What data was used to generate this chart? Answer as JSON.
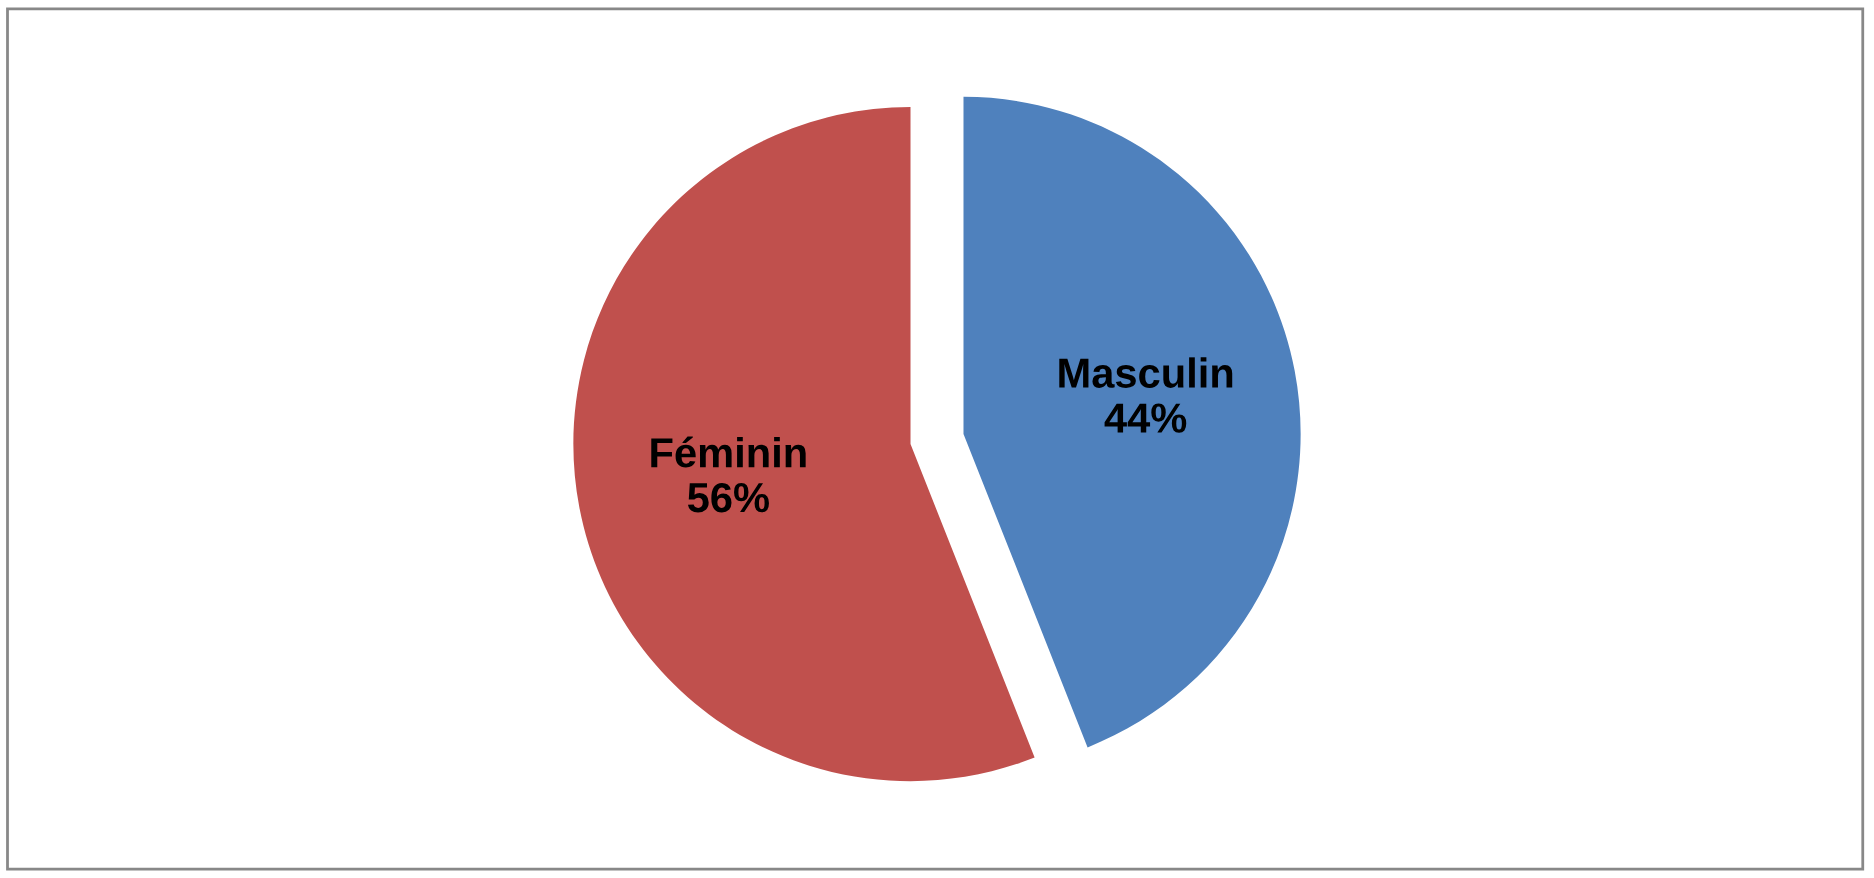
{
  "chart_data": {
    "type": "pie",
    "categories": [
      "Masculin",
      "Féminin"
    ],
    "values": [
      44,
      56
    ],
    "colors": [
      "#4f81bd",
      "#c0504d"
    ],
    "value_labels": [
      "44%",
      "56%"
    ],
    "legend": false
  }
}
